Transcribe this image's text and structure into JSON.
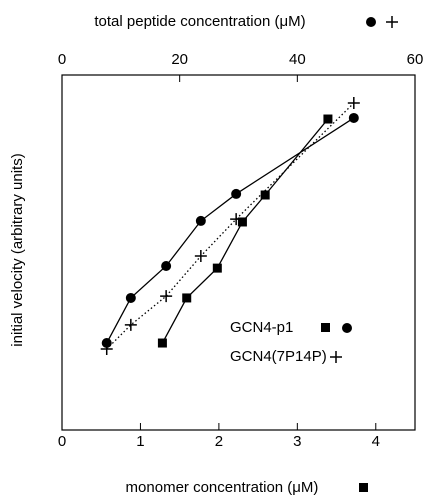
{
  "chart_data": {
    "type": "scatter",
    "xlabel": "monomer concentration (μM)",
    "x2label": "total peptide concentration (μM)",
    "ylabel": "initial velocity (arbitrary units)",
    "xlim": [
      0,
      4.5
    ],
    "xticks": [
      0,
      1,
      2,
      3,
      4
    ],
    "x2lim": [
      0,
      60
    ],
    "x2ticks": [
      0,
      20,
      40,
      60
    ],
    "ylim": [
      0,
      100
    ],
    "series": [
      {
        "name": "GCN4-p1",
        "marker": "square",
        "line": "solid",
        "color": "#000000",
        "xaxis": "x",
        "x": [
          1.28,
          1.59,
          1.98,
          2.3,
          2.59,
          3.39
        ],
        "values": [
          24.5,
          37.2,
          45.6,
          58.6,
          66.2,
          87.6
        ]
      },
      {
        "name": "GCN4-p1",
        "marker": "circle",
        "line": "solid",
        "color": "#000000",
        "xaxis": "x2",
        "x": [
          7.6,
          11.7,
          17.7,
          23.6,
          29.6,
          49.6
        ],
        "values": [
          24.5,
          37.2,
          46.2,
          58.9,
          66.5,
          87.9
        ]
      },
      {
        "name": "GCN4(7P14P)",
        "marker": "plus",
        "line": "dotted",
        "color": "#000000",
        "xaxis": "x2",
        "x": [
          7.6,
          11.7,
          17.7,
          23.6,
          29.6,
          49.6
        ],
        "values": [
          22.8,
          29.6,
          37.7,
          49.0,
          59.4,
          92.1
        ]
      }
    ]
  }
}
